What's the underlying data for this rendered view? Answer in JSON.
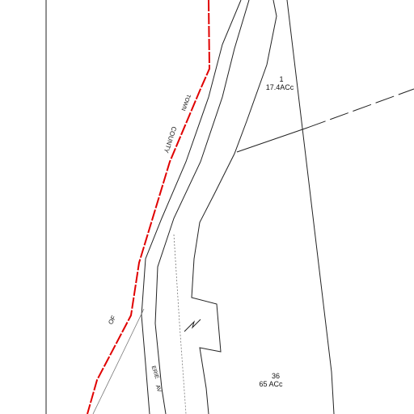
{
  "parcels": [
    {
      "number": "1",
      "area": "17.4ACc"
    },
    {
      "number": "36",
      "area": "65 ACc"
    }
  ],
  "labels": {
    "town": "TOWN",
    "county": "COUNTY",
    "of": "OF",
    "erie": "ERIE",
    "av": "AV"
  }
}
